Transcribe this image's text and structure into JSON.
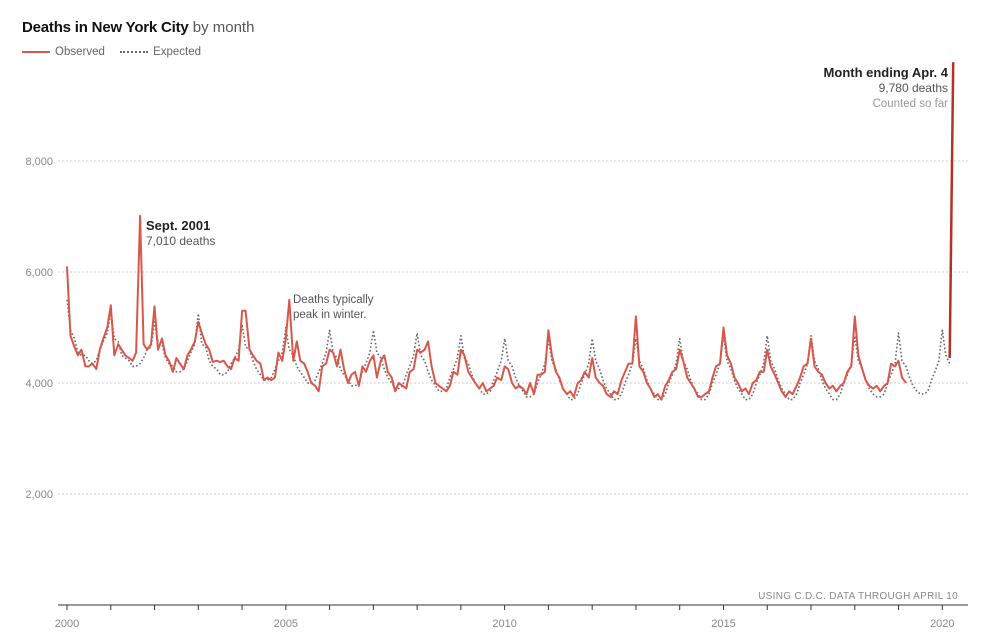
{
  "title": {
    "bold": "Deaths in New York City",
    "rest": "by month"
  },
  "legend": {
    "observed": "Observed",
    "expected": "Expected"
  },
  "colors": {
    "observed": "#d9574a",
    "expected": "#666666",
    "spike": "#b53026",
    "grid": "#cfcfcf",
    "axis_text": "#888888"
  },
  "annotations": {
    "sept_title": "Sept. 2001",
    "sept_value": "7,010 deaths",
    "winter_line1": "Deaths typically",
    "winter_line2": "peak in winter.",
    "apr_title": "Month ending Apr. 4",
    "apr_value": "9,780 deaths",
    "apr_note": "Counted so far",
    "source": "USING C.D.C. DATA THROUGH APRIL 10"
  },
  "chart_data": {
    "type": "line",
    "title": "Deaths in New York City by month",
    "xlabel": "",
    "ylabel": "",
    "xlim": [
      2000,
      2020.45
    ],
    "ylim": [
      0,
      10000
    ],
    "x_ticks": [
      2000,
      2005,
      2010,
      2015,
      2020
    ],
    "x_tick_labels": [
      "2000",
      "2005",
      "2010",
      "2015",
      "2020"
    ],
    "y_ticks": [
      2000,
      4000,
      6000,
      8000
    ],
    "y_tick_labels": [
      "2,000",
      "4,000",
      "6,000",
      "8,000"
    ],
    "grid": "horizontal dotted",
    "legend_position": "top-left",
    "series": [
      {
        "name": "Observed",
        "style": "solid",
        "x": [
          2000,
          2000.08,
          2000.17,
          2000.25,
          2000.33,
          2000.42,
          2000.5,
          2000.58,
          2000.67,
          2000.75,
          2000.83,
          2000.92,
          2001,
          2001.08,
          2001.17,
          2001.25,
          2001.33,
          2001.42,
          2001.5,
          2001.58,
          2001.67,
          2001.75,
          2001.83,
          2001.92,
          2002,
          2002.08,
          2002.17,
          2002.25,
          2002.33,
          2002.42,
          2002.5,
          2002.58,
          2002.67,
          2002.75,
          2002.83,
          2002.92,
          2003,
          2003.08,
          2003.17,
          2003.25,
          2003.33,
          2003.42,
          2003.5,
          2003.58,
          2003.67,
          2003.75,
          2003.83,
          2003.92,
          2004,
          2004.08,
          2004.17,
          2004.25,
          2004.33,
          2004.42,
          2004.5,
          2004.58,
          2004.67,
          2004.75,
          2004.83,
          2004.92,
          2005,
          2005.08,
          2005.17,
          2005.25,
          2005.33,
          2005.42,
          2005.5,
          2005.58,
          2005.67,
          2005.75,
          2005.83,
          2005.92,
          2006,
          2006.08,
          2006.17,
          2006.25,
          2006.33,
          2006.42,
          2006.5,
          2006.58,
          2006.67,
          2006.75,
          2006.83,
          2006.92,
          2007,
          2007.08,
          2007.17,
          2007.25,
          2007.33,
          2007.42,
          2007.5,
          2007.58,
          2007.67,
          2007.75,
          2007.83,
          2007.92,
          2008,
          2008.08,
          2008.17,
          2008.25,
          2008.33,
          2008.42,
          2008.5,
          2008.58,
          2008.67,
          2008.75,
          2008.83,
          2008.92,
          2009,
          2009.08,
          2009.17,
          2009.25,
          2009.33,
          2009.42,
          2009.5,
          2009.58,
          2009.67,
          2009.75,
          2009.83,
          2009.92,
          2010,
          2010.08,
          2010.17,
          2010.25,
          2010.33,
          2010.42,
          2010.5,
          2010.58,
          2010.67,
          2010.75,
          2010.83,
          2010.92,
          2011,
          2011.08,
          2011.17,
          2011.25,
          2011.33,
          2011.42,
          2011.5,
          2011.58,
          2011.67,
          2011.75,
          2011.83,
          2011.92,
          2012,
          2012.08,
          2012.17,
          2012.25,
          2012.33,
          2012.42,
          2012.5,
          2012.58,
          2012.67,
          2012.75,
          2012.83,
          2012.92,
          2013,
          2013.08,
          2013.17,
          2013.25,
          2013.33,
          2013.42,
          2013.5,
          2013.58,
          2013.67,
          2013.75,
          2013.83,
          2013.92,
          2014,
          2014.08,
          2014.17,
          2014.25,
          2014.33,
          2014.42,
          2014.5,
          2014.58,
          2014.67,
          2014.75,
          2014.83,
          2014.92,
          2015,
          2015.08,
          2015.17,
          2015.25,
          2015.33,
          2015.42,
          2015.5,
          2015.58,
          2015.67,
          2015.75,
          2015.83,
          2015.92,
          2016,
          2016.08,
          2016.17,
          2016.25,
          2016.33,
          2016.42,
          2016.5,
          2016.58,
          2016.67,
          2016.75,
          2016.83,
          2016.92,
          2017,
          2017.08,
          2017.17,
          2017.25,
          2017.33,
          2017.42,
          2017.5,
          2017.58,
          2017.67,
          2017.75,
          2017.83,
          2017.92,
          2018,
          2018.08,
          2018.17,
          2018.25,
          2018.33,
          2018.42,
          2018.5,
          2018.58,
          2018.67,
          2018.75,
          2018.83,
          2018.92,
          2019,
          2019.08,
          2019.17
        ],
        "y": [
          6100,
          4850,
          4650,
          4500,
          4600,
          4300,
          4300,
          4350,
          4250,
          4600,
          4800,
          5000,
          5400,
          4500,
          4700,
          4600,
          4500,
          4450,
          4400,
          4550,
          7010,
          4700,
          4600,
          4700,
          5380,
          4600,
          4800,
          4500,
          4400,
          4200,
          4450,
          4350,
          4250,
          4500,
          4600,
          4750,
          5100,
          4900,
          4700,
          4600,
          4380,
          4400,
          4380,
          4400,
          4300,
          4250,
          4450,
          4400,
          5300,
          5300,
          4600,
          4500,
          4400,
          4350,
          4050,
          4100,
          4050,
          4100,
          4550,
          4400,
          4800,
          5500,
          4400,
          4750,
          4400,
          4350,
          4200,
          4000,
          3950,
          3850,
          4300,
          4350,
          4600,
          4550,
          4300,
          4600,
          4250,
          4000,
          4150,
          4200,
          3950,
          4300,
          4200,
          4400,
          4500,
          4100,
          4400,
          4500,
          4200,
          4100,
          3850,
          4000,
          3950,
          3900,
          4200,
          4250,
          4600,
          4550,
          4600,
          4750,
          4300,
          4000,
          3950,
          3900,
          3850,
          3950,
          4200,
          4150,
          4600,
          4500,
          4200,
          4100,
          4000,
          3900,
          4000,
          3850,
          3900,
          3950,
          4100,
          4050,
          4300,
          4250,
          4000,
          3900,
          3950,
          3900,
          3800,
          4000,
          3800,
          4150,
          4150,
          4200,
          4950,
          4500,
          4200,
          4100,
          3900,
          3800,
          3850,
          3750,
          4000,
          4050,
          4200,
          4100,
          4450,
          4100,
          4000,
          3950,
          3800,
          3750,
          3850,
          3800,
          4050,
          4200,
          4350,
          4350,
          5200,
          4300,
          4200,
          4000,
          3900,
          3750,
          3800,
          3700,
          3950,
          4050,
          4200,
          4250,
          4600,
          4400,
          4100,
          4000,
          3900,
          3750,
          3750,
          3800,
          3850,
          4100,
          4300,
          4350,
          5000,
          4500,
          4350,
          4100,
          4000,
          3850,
          3900,
          3800,
          4000,
          4050,
          4200,
          4200,
          4600,
          4300,
          4150,
          4000,
          3850,
          3750,
          3850,
          3800,
          3950,
          4100,
          4300,
          4350,
          4800,
          4300,
          4200,
          4150,
          4000,
          3900,
          3950,
          3850,
          3950,
          4000,
          4200,
          4300,
          5200,
          4500,
          4250,
          4050,
          3950,
          3900,
          3950,
          3850,
          3950,
          4000,
          4350,
          4300,
          4400,
          4100,
          4000
        ],
        "spike": {
          "x": [
            2020.17,
            2020.25
          ],
          "y": [
            4450,
            9780
          ]
        }
      },
      {
        "name": "Expected",
        "style": "dotted",
        "x": [
          2000,
          2000.08,
          2000.17,
          2000.25,
          2000.33,
          2000.42,
          2000.5,
          2000.58,
          2000.67,
          2000.75,
          2000.83,
          2000.92,
          2001,
          2001.08,
          2001.17,
          2001.25,
          2001.33,
          2001.42,
          2001.5,
          2001.58,
          2001.67,
          2001.75,
          2001.83,
          2001.92,
          2002,
          2002.08,
          2002.17,
          2002.25,
          2002.33,
          2002.42,
          2002.5,
          2002.58,
          2002.67,
          2002.75,
          2002.83,
          2002.92,
          2003,
          2003.08,
          2003.17,
          2003.25,
          2003.33,
          2003.42,
          2003.5,
          2003.58,
          2003.67,
          2003.75,
          2003.83,
          2003.92,
          2004,
          2004.08,
          2004.17,
          2004.25,
          2004.33,
          2004.42,
          2004.5,
          2004.58,
          2004.67,
          2004.75,
          2004.83,
          2004.92,
          2005,
          2005.08,
          2005.17,
          2005.25,
          2005.33,
          2005.42,
          2005.5,
          2005.58,
          2005.67,
          2005.75,
          2005.83,
          2005.92,
          2006,
          2006.08,
          2006.17,
          2006.25,
          2006.33,
          2006.42,
          2006.5,
          2006.58,
          2006.67,
          2006.75,
          2006.83,
          2006.92,
          2007,
          2007.08,
          2007.17,
          2007.25,
          2007.33,
          2007.42,
          2007.5,
          2007.58,
          2007.67,
          2007.75,
          2007.83,
          2007.92,
          2008,
          2008.08,
          2008.17,
          2008.25,
          2008.33,
          2008.42,
          2008.5,
          2008.58,
          2008.67,
          2008.75,
          2008.83,
          2008.92,
          2009,
          2009.08,
          2009.17,
          2009.25,
          2009.33,
          2009.42,
          2009.5,
          2009.58,
          2009.67,
          2009.75,
          2009.83,
          2009.92,
          2010,
          2010.08,
          2010.17,
          2010.25,
          2010.33,
          2010.42,
          2010.5,
          2010.58,
          2010.67,
          2010.75,
          2010.83,
          2010.92,
          2011,
          2011.08,
          2011.17,
          2011.25,
          2011.33,
          2011.42,
          2011.5,
          2011.58,
          2011.67,
          2011.75,
          2011.83,
          2011.92,
          2012,
          2012.08,
          2012.17,
          2012.25,
          2012.33,
          2012.42,
          2012.5,
          2012.58,
          2012.67,
          2012.75,
          2012.83,
          2012.92,
          2013,
          2013.08,
          2013.17,
          2013.25,
          2013.33,
          2013.42,
          2013.5,
          2013.58,
          2013.67,
          2013.75,
          2013.83,
          2013.92,
          2014,
          2014.08,
          2014.17,
          2014.25,
          2014.33,
          2014.42,
          2014.5,
          2014.58,
          2014.67,
          2014.75,
          2014.83,
          2014.92,
          2015,
          2015.08,
          2015.17,
          2015.25,
          2015.33,
          2015.42,
          2015.5,
          2015.58,
          2015.67,
          2015.75,
          2015.83,
          2015.92,
          2016,
          2016.08,
          2016.17,
          2016.25,
          2016.33,
          2016.42,
          2016.5,
          2016.58,
          2016.67,
          2016.75,
          2016.83,
          2016.92,
          2017,
          2017.08,
          2017.17,
          2017.25,
          2017.33,
          2017.42,
          2017.5,
          2017.58,
          2017.67,
          2017.75,
          2017.83,
          2017.92,
          2018,
          2018.08,
          2018.17,
          2018.25,
          2018.33,
          2018.42,
          2018.5,
          2018.58,
          2018.67,
          2018.75,
          2018.83,
          2018.92,
          2019,
          2019.08,
          2019.17,
          2019.25,
          2019.33,
          2019.42,
          2019.5,
          2019.58,
          2019.67,
          2019.75,
          2019.83,
          2019.92,
          2020,
          2020.08,
          2020.17
        ],
        "y": [
          5500,
          4950,
          4800,
          4550,
          4500,
          4500,
          4400,
          4350,
          4400,
          4600,
          4750,
          4900,
          5300,
          4800,
          4750,
          4500,
          4450,
          4400,
          4300,
          4300,
          4350,
          4450,
          4600,
          4650,
          5100,
          4750,
          4700,
          4450,
          4350,
          4300,
          4200,
          4200,
          4250,
          4400,
          4550,
          4700,
          5250,
          4700,
          4650,
          4400,
          4300,
          4250,
          4150,
          4150,
          4200,
          4350,
          4450,
          4600,
          5050,
          4650,
          4600,
          4400,
          4250,
          4150,
          4050,
          4050,
          4100,
          4250,
          4400,
          4550,
          5000,
          4600,
          4500,
          4300,
          4200,
          4100,
          4000,
          4000,
          4050,
          4200,
          4350,
          4550,
          4950,
          4550,
          4450,
          4250,
          4150,
          4050,
          3950,
          3950,
          4000,
          4200,
          4350,
          4550,
          4950,
          4550,
          4450,
          4250,
          4100,
          4000,
          3900,
          3900,
          3950,
          4150,
          4300,
          4500,
          4900,
          4500,
          4400,
          4200,
          4050,
          3950,
          3850,
          3850,
          3900,
          4100,
          4250,
          4450,
          4850,
          4450,
          4350,
          4150,
          4000,
          3900,
          3800,
          3800,
          3850,
          4050,
          4200,
          4400,
          4800,
          4400,
          4300,
          4100,
          3950,
          3850,
          3750,
          3750,
          3800,
          4000,
          4150,
          4350,
          4800,
          4400,
          4250,
          4050,
          3900,
          3800,
          3700,
          3700,
          3800,
          4000,
          4150,
          4350,
          4800,
          4400,
          4250,
          4050,
          3900,
          3800,
          3700,
          3700,
          3800,
          4000,
          4150,
          4350,
          4800,
          4400,
          4250,
          4050,
          3900,
          3800,
          3700,
          3700,
          3800,
          4000,
          4150,
          4350,
          4800,
          4400,
          4250,
          4050,
          3900,
          3800,
          3700,
          3700,
          3800,
          4000,
          4150,
          4350,
          4850,
          4400,
          4250,
          4050,
          3900,
          3800,
          3700,
          3700,
          3800,
          4000,
          4150,
          4350,
          4850,
          4400,
          4250,
          4050,
          3900,
          3800,
          3700,
          3700,
          3800,
          4000,
          4150,
          4350,
          4850,
          4400,
          4250,
          4050,
          3900,
          3800,
          3700,
          3700,
          3800,
          4000,
          4150,
          4350,
          4850,
          4400,
          4250,
          4050,
          3900,
          3800,
          3750,
          3750,
          3800,
          4000,
          4150,
          4350,
          4900,
          4400,
          4300,
          4100,
          3950,
          3850,
          3800,
          3800,
          3850,
          4050,
          4200,
          4400,
          4950,
          4500,
          4350
        ]
      }
    ]
  }
}
